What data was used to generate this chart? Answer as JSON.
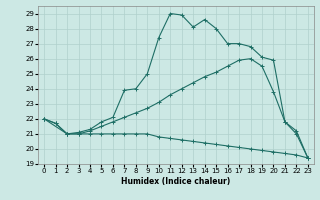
{
  "xlabel": "Humidex (Indice chaleur)",
  "xlim": [
    -0.5,
    23.5
  ],
  "ylim": [
    19,
    29.5
  ],
  "yticks": [
    19,
    20,
    21,
    22,
    23,
    24,
    25,
    26,
    27,
    28,
    29
  ],
  "xticks": [
    0,
    1,
    2,
    3,
    4,
    5,
    6,
    7,
    8,
    9,
    10,
    11,
    12,
    13,
    14,
    15,
    16,
    17,
    18,
    19,
    20,
    21,
    22,
    23
  ],
  "bg_color": "#cce8e4",
  "line_color": "#1e6e65",
  "grid_color": "#b0d0cc",
  "lines": [
    {
      "x": [
        0,
        1,
        2,
        3,
        4,
        5,
        6,
        7,
        8,
        9,
        10,
        11,
        12,
        13,
        14,
        15,
        16,
        17,
        18,
        19,
        20,
        21,
        22,
        23
      ],
      "y": [
        22,
        21.7,
        21,
        21,
        21,
        21,
        21,
        21,
        21,
        21,
        20.8,
        20.7,
        20.6,
        20.5,
        20.4,
        20.3,
        20.2,
        20.1,
        20.0,
        19.9,
        19.8,
        19.7,
        19.6,
        19.4
      ]
    },
    {
      "x": [
        0,
        2,
        3,
        4,
        5,
        6,
        7,
        8,
        9,
        10,
        11,
        12,
        13,
        14,
        15,
        16,
        17,
        18,
        19,
        20,
        21,
        22,
        23
      ],
      "y": [
        22,
        21,
        21,
        21.2,
        21.5,
        21.8,
        22.1,
        22.4,
        22.7,
        23.1,
        23.6,
        24.0,
        24.4,
        24.8,
        25.1,
        25.5,
        25.9,
        26.0,
        25.5,
        23.8,
        21.8,
        21.2,
        19.4
      ]
    },
    {
      "x": [
        0,
        1,
        2,
        3,
        4,
        5,
        6,
        7,
        8,
        9,
        10,
        11,
        12,
        13,
        14,
        15,
        16,
        17,
        18,
        19,
        20,
        21,
        22,
        23
      ],
      "y": [
        22,
        21.7,
        21,
        21.1,
        21.3,
        21.8,
        22.1,
        23.9,
        24.0,
        25.0,
        27.4,
        29.0,
        28.9,
        28.1,
        28.6,
        28.0,
        27.0,
        27.0,
        26.8,
        26.1,
        25.9,
        21.8,
        21.0,
        19.4
      ]
    }
  ]
}
